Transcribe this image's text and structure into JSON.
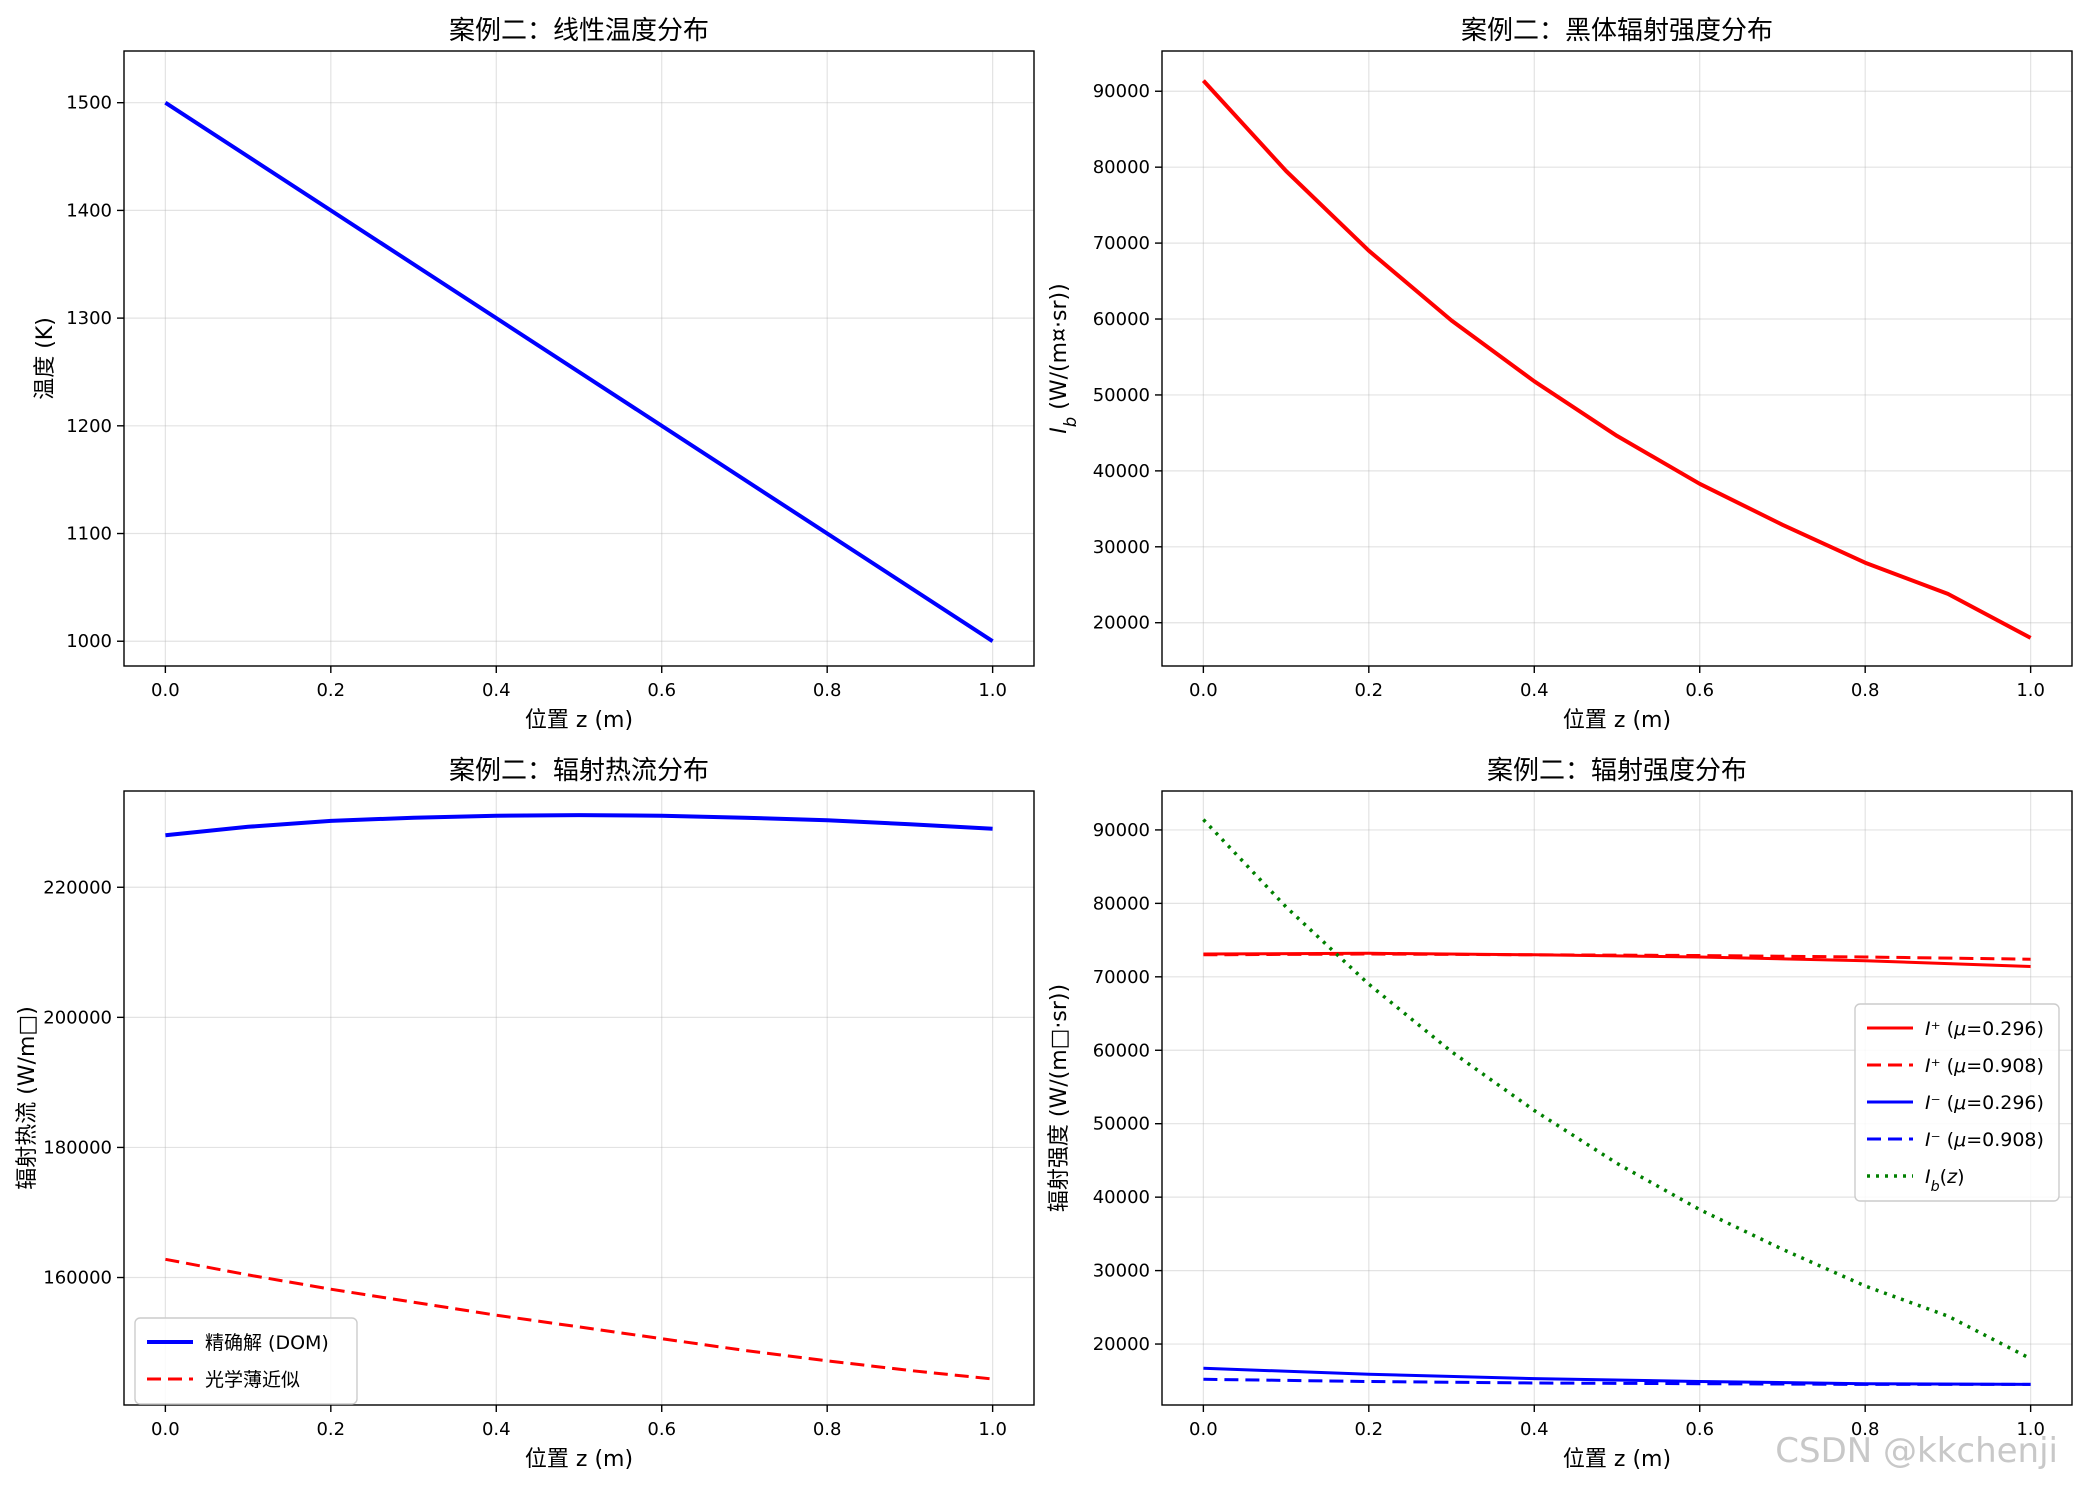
{
  "watermark": "CSDN @kkchenji",
  "chart_data": [
    {
      "type": "line",
      "title": "案例二：线性温度分布",
      "xlabel": "位置 z (m)",
      "ylabel": "温度 (K)",
      "xlim": [
        -0.05,
        1.05
      ],
      "ylim": [
        977,
        1548
      ],
      "xticks": [
        0.0,
        0.2,
        0.4,
        0.6,
        0.8,
        1.0
      ],
      "xtick_labels": [
        "0.0",
        "0.2",
        "0.4",
        "0.6",
        "0.8",
        "1.0"
      ],
      "yticks": [
        1000,
        1100,
        1200,
        1300,
        1400,
        1500
      ],
      "ytick_labels": [
        "1000",
        "1100",
        "1200",
        "1300",
        "1400",
        "1500"
      ],
      "grid": true,
      "series": [
        {
          "color": "#0000ff",
          "dash": "solid",
          "width": 4,
          "x": [
            0.0,
            1.0
          ],
          "y": [
            1500,
            1000
          ]
        }
      ]
    },
    {
      "type": "line",
      "title": "案例二：黑体辐射强度分布",
      "xlabel": "位置 z (m)",
      "ylabel": "I_b (W/(m¤·sr))",
      "xlim": [
        -0.05,
        1.05
      ],
      "ylim": [
        14300,
        95300
      ],
      "xticks": [
        0.0,
        0.2,
        0.4,
        0.6,
        0.8,
        1.0
      ],
      "xtick_labels": [
        "0.0",
        "0.2",
        "0.4",
        "0.6",
        "0.8",
        "1.0"
      ],
      "yticks": [
        20000,
        30000,
        40000,
        50000,
        60000,
        70000,
        80000,
        90000
      ],
      "ytick_labels": [
        "20000",
        "30000",
        "40000",
        "50000",
        "60000",
        "70000",
        "80000",
        "90000"
      ],
      "grid": true,
      "series": [
        {
          "color": "#ff0000",
          "dash": "solid",
          "width": 4,
          "x": [
            0.0,
            0.1,
            0.2,
            0.3,
            0.4,
            0.5,
            0.6,
            0.7,
            0.8,
            0.9,
            1.0
          ],
          "y": [
            91400,
            79500,
            69000,
            59800,
            51800,
            44600,
            38300,
            32900,
            27900,
            23800,
            18000
          ]
        }
      ]
    },
    {
      "type": "line",
      "title": "案例二：辐射热流分布",
      "xlabel": "位置 z (m)",
      "ylabel": "辐射热流 (W/m□)",
      "xlim": [
        -0.05,
        1.05
      ],
      "ylim": [
        140400,
        234800
      ],
      "xticks": [
        0.0,
        0.2,
        0.4,
        0.6,
        0.8,
        1.0
      ],
      "xtick_labels": [
        "0.0",
        "0.2",
        "0.4",
        "0.6",
        "0.8",
        "1.0"
      ],
      "yticks": [
        160000,
        180000,
        200000,
        220000
      ],
      "ytick_labels": [
        "160000",
        "180000",
        "200000",
        "220000"
      ],
      "grid": true,
      "legend": "lower-left",
      "series": [
        {
          "name": "精确解 (DOM)",
          "color": "#0000ff",
          "dash": "solid",
          "width": 4,
          "x": [
            0.0,
            0.1,
            0.2,
            0.3,
            0.4,
            0.5,
            0.6,
            0.7,
            0.8,
            0.9,
            1.0
          ],
          "y": [
            228000,
            229300,
            230200,
            230700,
            231000,
            231100,
            231000,
            230700,
            230300,
            229700,
            229000
          ]
        },
        {
          "name": "光学薄近似",
          "color": "#ff0000",
          "dash": "dashed",
          "width": 3,
          "x": [
            0.0,
            0.1,
            0.2,
            0.3,
            0.4,
            0.5,
            0.6,
            0.7,
            0.8,
            0.9,
            1.0
          ],
          "y": [
            162800,
            160400,
            158200,
            156200,
            154200,
            152400,
            150600,
            148800,
            147200,
            145700,
            144400
          ]
        }
      ]
    },
    {
      "type": "line",
      "title": "案例二：辐射强度分布",
      "xlabel": "位置 z (m)",
      "ylabel": "辐射强度 (W/(m□·sr))",
      "xlim": [
        -0.05,
        1.05
      ],
      "ylim": [
        11700,
        95300
      ],
      "xticks": [
        0.0,
        0.2,
        0.4,
        0.6,
        0.8,
        1.0
      ],
      "xtick_labels": [
        "0.0",
        "0.2",
        "0.4",
        "0.6",
        "0.8",
        "1.0"
      ],
      "yticks": [
        20000,
        30000,
        40000,
        50000,
        60000,
        70000,
        80000,
        90000
      ],
      "ytick_labels": [
        "20000",
        "30000",
        "40000",
        "50000",
        "60000",
        "70000",
        "80000",
        "90000"
      ],
      "grid": true,
      "legend": "center-right",
      "series": [
        {
          "name": "I⁺ (μ=0.296)",
          "color": "#ff0000",
          "dash": "solid",
          "width": 3,
          "x": [
            0.0,
            0.2,
            0.4,
            0.6,
            0.8,
            1.0
          ],
          "y": [
            73100,
            73200,
            73000,
            72700,
            72200,
            71400
          ]
        },
        {
          "name": "I⁺ (μ=0.908)",
          "color": "#ff0000",
          "dash": "dashed",
          "width": 3,
          "x": [
            0.0,
            0.2,
            0.4,
            0.6,
            0.8,
            1.0
          ],
          "y": [
            73000,
            73100,
            73000,
            72900,
            72700,
            72400
          ]
        },
        {
          "name": "I⁻ (μ=0.296)",
          "color": "#0000ff",
          "dash": "solid",
          "width": 3,
          "x": [
            0.0,
            0.2,
            0.4,
            0.6,
            0.8,
            1.0
          ],
          "y": [
            16700,
            15900,
            15300,
            14900,
            14600,
            14500
          ]
        },
        {
          "name": "I⁻ (μ=0.908)",
          "color": "#0000ff",
          "dash": "dashed",
          "width": 3,
          "x": [
            0.0,
            0.2,
            0.4,
            0.6,
            0.8,
            1.0
          ],
          "y": [
            15200,
            14900,
            14700,
            14600,
            14500,
            14500
          ]
        },
        {
          "name": "I_b(z)",
          "color": "#008000",
          "dash": "dotted",
          "width": 3.5,
          "x": [
            0.0,
            0.1,
            0.2,
            0.3,
            0.4,
            0.5,
            0.6,
            0.7,
            0.8,
            0.9,
            1.0
          ],
          "y": [
            91400,
            79500,
            69000,
            59800,
            51800,
            44600,
            38300,
            32900,
            27900,
            23800,
            18000
          ]
        }
      ]
    }
  ]
}
